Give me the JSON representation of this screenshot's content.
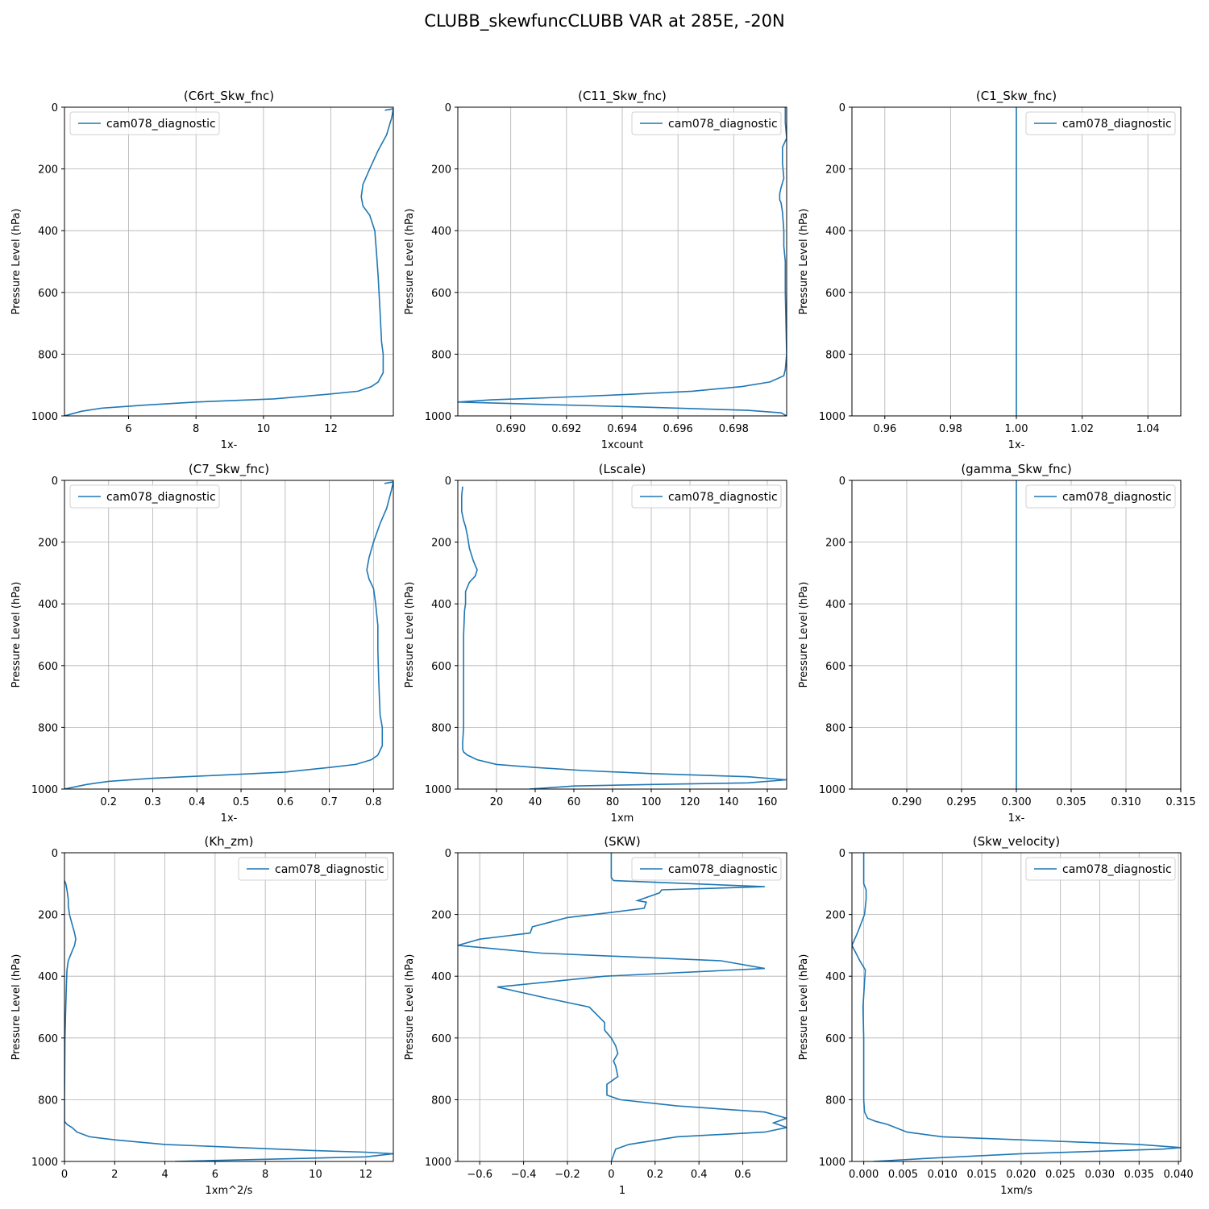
{
  "figure_title": "CLUBB_skewfuncCLUBB VAR at 285E, -20N",
  "colors": {
    "series": "#1f77b4",
    "grid": "#b0b0b0",
    "axis": "#000000"
  },
  "chart_data": [
    {
      "type": "line",
      "title": "(C6rt_Skw_fnc)",
      "xlabel": "1x-",
      "ylabel": "Pressure Level (hPa)",
      "xlim": [
        4.1,
        13.85
      ],
      "ylim": [
        1000,
        0
      ],
      "y_inverted": true,
      "xticks": [
        6,
        8,
        10,
        12
      ],
      "xtick_labels": [
        "6",
        "8",
        "10",
        "12"
      ],
      "yticks": [
        0,
        200,
        400,
        600,
        800,
        1000
      ],
      "ytick_labels": [
        "0",
        "200",
        "400",
        "600",
        "800",
        "1000"
      ],
      "grid": true,
      "legend_position": "top-left",
      "series": [
        {
          "name": "cam078_diagnostic",
          "x": [
            13.6,
            13.85,
            13.8,
            13.65,
            13.4,
            13.15,
            12.95,
            12.9,
            12.95,
            13.15,
            13.3,
            13.35,
            13.4,
            13.45,
            13.5,
            13.55,
            13.55,
            13.4,
            13.2,
            12.8,
            11.9,
            10.3,
            8.0,
            6.5,
            5.2,
            4.6,
            4.1
          ],
          "y": [
            10,
            5,
            35,
            90,
            140,
            200,
            250,
            290,
            320,
            350,
            400,
            470,
            550,
            650,
            760,
            800,
            860,
            890,
            905,
            920,
            930,
            945,
            955,
            965,
            975,
            985,
            1000
          ]
        }
      ]
    },
    {
      "type": "line",
      "title": "(C11_Skw_fnc)",
      "xlabel": "1xcount",
      "ylabel": "Pressure Level (hPa)",
      "xlim": [
        0.6881,
        0.6999
      ],
      "ylim": [
        1000,
        0
      ],
      "y_inverted": true,
      "xticks": [
        0.69,
        0.692,
        0.694,
        0.696,
        0.698
      ],
      "xtick_labels": [
        "0.690",
        "0.692",
        "0.694",
        "0.696",
        "0.698"
      ],
      "yticks": [
        0,
        200,
        400,
        600,
        800,
        1000
      ],
      "ytick_labels": [
        "0",
        "200",
        "400",
        "600",
        "800",
        "1000"
      ],
      "grid": true,
      "legend_position": "top-right",
      "series": [
        {
          "name": "cam078_diagnostic",
          "x": [
            0.69985,
            0.69985,
            0.6999,
            0.69975,
            0.69975,
            0.6998,
            0.6997,
            0.69965,
            0.69965,
            0.6997,
            0.69975,
            0.6998,
            0.6998,
            0.69985,
            0.69985,
            0.6999,
            0.69985,
            0.6998,
            0.6993,
            0.6983,
            0.6965,
            0.6943,
            0.6917,
            0.6893,
            0.6881,
            0.6908,
            0.695,
            0.6985,
            0.6997,
            0.6999
          ],
          "y": [
            0,
            50,
            100,
            130,
            180,
            230,
            260,
            280,
            300,
            310,
            340,
            400,
            450,
            500,
            600,
            800,
            850,
            870,
            890,
            905,
            920,
            930,
            940,
            948,
            955,
            962,
            972,
            982,
            990,
            1000
          ]
        }
      ]
    },
    {
      "type": "line",
      "title": "(C1_Skw_fnc)",
      "xlabel": "1x-",
      "ylabel": "Pressure Level (hPa)",
      "xlim": [
        0.95,
        1.05
      ],
      "ylim": [
        1000,
        0
      ],
      "y_inverted": true,
      "xticks": [
        0.96,
        0.98,
        1.0,
        1.02,
        1.04
      ],
      "xtick_labels": [
        "0.96",
        "0.98",
        "1.00",
        "1.02",
        "1.04"
      ],
      "yticks": [
        0,
        200,
        400,
        600,
        800,
        1000
      ],
      "ytick_labels": [
        "0",
        "200",
        "400",
        "600",
        "800",
        "1000"
      ],
      "grid": true,
      "legend_position": "top-right",
      "series": [
        {
          "name": "cam078_diagnostic",
          "x": [
            1.0,
            1.0
          ],
          "y": [
            0,
            1000
          ]
        }
      ]
    },
    {
      "type": "line",
      "title": "(C7_Skw_fnc)",
      "xlabel": "1x-",
      "ylabel": "Pressure Level (hPa)",
      "xlim": [
        0.1,
        0.845
      ],
      "ylim": [
        1000,
        0
      ],
      "y_inverted": true,
      "xticks": [
        0.2,
        0.3,
        0.4,
        0.5,
        0.6,
        0.7,
        0.8
      ],
      "xtick_labels": [
        "0.2",
        "0.3",
        "0.4",
        "0.5",
        "0.6",
        "0.7",
        "0.8"
      ],
      "yticks": [
        0,
        200,
        400,
        600,
        800,
        1000
      ],
      "ytick_labels": [
        "0",
        "200",
        "400",
        "600",
        "800",
        "1000"
      ],
      "grid": true,
      "legend_position": "top-left",
      "series": [
        {
          "name": "cam078_diagnostic",
          "x": [
            0.825,
            0.845,
            0.84,
            0.83,
            0.815,
            0.8,
            0.79,
            0.785,
            0.79,
            0.8,
            0.805,
            0.81,
            0.81,
            0.812,
            0.815,
            0.82,
            0.82,
            0.81,
            0.795,
            0.76,
            0.7,
            0.6,
            0.45,
            0.3,
            0.2,
            0.15,
            0.1
          ],
          "y": [
            10,
            5,
            35,
            90,
            140,
            200,
            250,
            290,
            320,
            350,
            400,
            470,
            550,
            650,
            760,
            800,
            860,
            890,
            905,
            920,
            930,
            945,
            955,
            965,
            975,
            985,
            1000
          ]
        }
      ]
    },
    {
      "type": "line",
      "title": "(Lscale)",
      "xlabel": "1xm",
      "ylabel": "Pressure Level (hPa)",
      "xlim": [
        0,
        170
      ],
      "ylim": [
        1000,
        0
      ],
      "y_inverted": true,
      "xticks": [
        20,
        40,
        60,
        80,
        100,
        120,
        140,
        160
      ],
      "xtick_labels": [
        "20",
        "40",
        "60",
        "80",
        "100",
        "120",
        "140",
        "160"
      ],
      "yticks": [
        0,
        200,
        400,
        600,
        800,
        1000
      ],
      "ytick_labels": [
        "0",
        "200",
        "400",
        "600",
        "800",
        "1000"
      ],
      "grid": true,
      "legend_position": "top-right",
      "series": [
        {
          "name": "cam078_diagnostic",
          "x": [
            2.5,
            2,
            2,
            3,
            4,
            5,
            6,
            8,
            10,
            9,
            6,
            4,
            4,
            3.5,
            3,
            3,
            3,
            2.5,
            2.5,
            3,
            5,
            10,
            20,
            40,
            65,
            100,
            150,
            170,
            150,
            100,
            60,
            37
          ],
          "y": [
            20,
            50,
            100,
            130,
            150,
            180,
            220,
            260,
            290,
            310,
            330,
            360,
            400,
            420,
            500,
            600,
            800,
            850,
            870,
            880,
            890,
            905,
            920,
            930,
            940,
            950,
            960,
            970,
            980,
            985,
            990,
            1000
          ]
        }
      ]
    },
    {
      "type": "line",
      "title": "(gamma_Skw_fnc)",
      "xlabel": "1x-",
      "ylabel": "Pressure Level (hPa)",
      "xlim": [
        0.285,
        0.315
      ],
      "ylim": [
        1000,
        0
      ],
      "y_inverted": true,
      "xticks": [
        0.29,
        0.295,
        0.3,
        0.305,
        0.31,
        0.315
      ],
      "xtick_labels": [
        "0.290",
        "0.295",
        "0.300",
        "0.305",
        "0.310",
        "0.315"
      ],
      "yticks": [
        0,
        200,
        400,
        600,
        800,
        1000
      ],
      "ytick_labels": [
        "0",
        "200",
        "400",
        "600",
        "800",
        "1000"
      ],
      "grid": true,
      "legend_position": "top-right",
      "series": [
        {
          "name": "cam078_diagnostic",
          "x": [
            0.3,
            0.3
          ],
          "y": [
            0,
            1000
          ]
        }
      ]
    },
    {
      "type": "line",
      "title": "(Kh_zm)",
      "xlabel": "1xm^2/s",
      "ylabel": "Pressure Level (hPa)",
      "xlim": [
        0,
        13.1
      ],
      "ylim": [
        1000,
        0
      ],
      "y_inverted": true,
      "xticks": [
        0,
        2,
        4,
        6,
        8,
        10,
        12
      ],
      "xtick_labels": [
        "0",
        "2",
        "4",
        "6",
        "8",
        "10",
        "12"
      ],
      "yticks": [
        0,
        200,
        400,
        600,
        800,
        1000
      ],
      "ytick_labels": [
        "0",
        "200",
        "400",
        "600",
        "800",
        "1000"
      ],
      "grid": true,
      "legend_position": "top-right",
      "series": [
        {
          "name": "cam078_diagnostic",
          "x": [
            0.0,
            0.05,
            0.1,
            0.15,
            0.15,
            0.2,
            0.3,
            0.4,
            0.45,
            0.4,
            0.3,
            0.15,
            0.1,
            0.08,
            0.05,
            0.02,
            0.0,
            0.0,
            0.0,
            0.1,
            0.3,
            0.5,
            1.0,
            2.0,
            4.0,
            7.0,
            10.0,
            12.0,
            13.1,
            12.0,
            8.0,
            4.4
          ],
          "y": [
            90,
            100,
            120,
            150,
            170,
            200,
            230,
            260,
            280,
            300,
            320,
            350,
            380,
            420,
            500,
            600,
            800,
            850,
            870,
            880,
            890,
            905,
            920,
            930,
            945,
            955,
            965,
            970,
            975,
            985,
            993,
            1000
          ]
        }
      ]
    },
    {
      "type": "line",
      "title": "(SKW)",
      "xlabel": "1",
      "ylabel": "Pressure Level (hPa)",
      "xlim": [
        -0.7,
        0.8
      ],
      "ylim": [
        1000,
        0
      ],
      "y_inverted": true,
      "xticks": [
        -0.6,
        -0.4,
        -0.2,
        0,
        0.2,
        0.4,
        0.6
      ],
      "xtick_labels": [
        "−0.6",
        "−0.4",
        "−0.2",
        "0",
        "0.2",
        "0.4",
        "0.6"
      ],
      "yticks": [
        0,
        200,
        400,
        600,
        800,
        1000
      ],
      "ytick_labels": [
        "0",
        "200",
        "400",
        "600",
        "800",
        "1000"
      ],
      "grid": true,
      "legend_position": "top-right",
      "series": [
        {
          "name": "cam078_diagnostic",
          "x": [
            0.0,
            0.0,
            0.01,
            0.7,
            0.23,
            0.22,
            0.12,
            0.16,
            0.15,
            -0.02,
            -0.2,
            -0.28,
            -0.36,
            -0.37,
            -0.6,
            -0.7,
            -0.32,
            0.5,
            0.7,
            -0.03,
            -0.52,
            -0.3,
            -0.1,
            -0.03,
            -0.03,
            0.0,
            0.02,
            0.03,
            0.01,
            0.02,
            0.03,
            -0.02,
            -0.02,
            0.04,
            0.3,
            0.7,
            0.8,
            0.74,
            0.8,
            0.7,
            0.3,
            0.08,
            0.02,
            0.0
          ],
          "y": [
            0,
            80,
            90,
            110,
            120,
            130,
            155,
            160,
            180,
            195,
            210,
            225,
            240,
            260,
            280,
            300,
            325,
            350,
            375,
            400,
            435,
            470,
            500,
            550,
            575,
            600,
            625,
            650,
            675,
            690,
            725,
            750,
            785,
            800,
            820,
            840,
            860,
            875,
            890,
            905,
            920,
            945,
            960,
            1000
          ]
        }
      ]
    },
    {
      "type": "line",
      "title": "(Skw_velocity)",
      "xlabel": "1xm/s",
      "ylabel": "Pressure Level (hPa)",
      "xlim": [
        -0.0015,
        0.0403
      ],
      "ylim": [
        1000,
        0
      ],
      "y_inverted": true,
      "xticks": [
        0.0,
        0.005,
        0.01,
        0.015,
        0.02,
        0.025,
        0.03,
        0.035,
        0.04
      ],
      "xtick_labels": [
        "0.000",
        "0.005",
        "0.010",
        "0.015",
        "0.020",
        "0.025",
        "0.030",
        "0.035",
        "0.040"
      ],
      "yticks": [
        0,
        200,
        400,
        600,
        800,
        1000
      ],
      "ytick_labels": [
        "0",
        "200",
        "400",
        "600",
        "800",
        "1000"
      ],
      "grid": true,
      "legend_position": "top-right",
      "series": [
        {
          "name": "cam078_diagnostic",
          "x": [
            0.0,
            0.0,
            0.0003,
            0.0003,
            0.0001,
            -0.0008,
            -0.0015,
            -0.0005,
            0.0002,
            0.0001,
            -0.0001,
            0.0,
            0.0,
            0.0001,
            0.0005,
            0.0015,
            0.003,
            0.0055,
            0.01,
            0.02,
            0.035,
            0.0403,
            0.038,
            0.02,
            0.008,
            0.0012
          ],
          "y": [
            0,
            100,
            120,
            150,
            200,
            260,
            300,
            350,
            380,
            420,
            500,
            600,
            800,
            840,
            860,
            870,
            880,
            905,
            920,
            930,
            945,
            955,
            960,
            975,
            990,
            1000
          ]
        }
      ]
    }
  ]
}
